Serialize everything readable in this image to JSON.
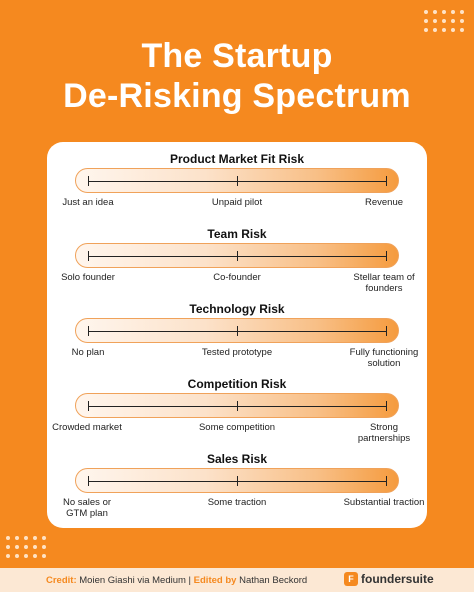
{
  "title_line1": "The Startup",
  "title_line2": "De-Risking Spectrum",
  "sections": [
    {
      "title": "Product Market Fit Risk",
      "left": "Just an idea",
      "mid": "Unpaid pilot",
      "right": "Revenue"
    },
    {
      "title": "Team Risk",
      "left": "Solo founder",
      "mid": "Co-founder",
      "right": "Stellar team of founders"
    },
    {
      "title": "Technology Risk",
      "left": "No plan",
      "mid": "Tested prototype",
      "right": "Fully functioning solution"
    },
    {
      "title": "Competition Risk",
      "left": "Crowded market",
      "mid": "Some competition",
      "right": "Strong partnerships"
    },
    {
      "title": "Sales Risk",
      "left": "No sales or GTM plan",
      "mid": "Some traction",
      "right": "Substantial traction"
    }
  ],
  "footer": {
    "credit_label": "Credit:",
    "credit_text": "Moien Giashi via Medium |",
    "edited_label": "Edited by",
    "edited_text": "Nathan Beckord",
    "brand": "foundersuite",
    "brand_icon": "F"
  },
  "colors": {
    "background": "#F5891F",
    "card": "#FFFFFF",
    "footer": "#FCE8D4"
  }
}
